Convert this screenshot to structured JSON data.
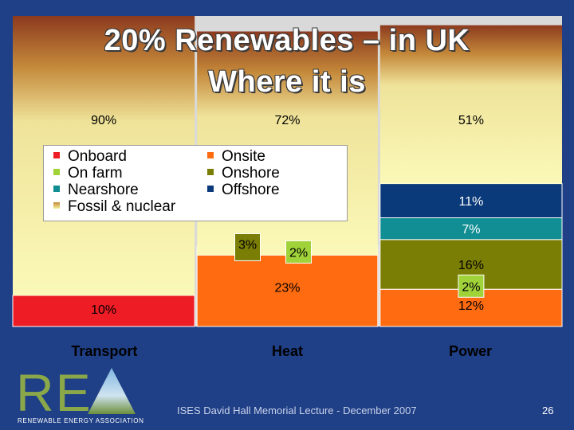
{
  "slide": {
    "title_line1": "20% Renewables – in UK",
    "title_line2": "Where it is",
    "footer": "ISES David Hall Memorial Lecture - December 2007",
    "page_number": "26",
    "logo": {
      "letters": "RE",
      "tagline": "RENEWABLE ENERGY ASSOCIATION"
    }
  },
  "colors": {
    "background": "#1f3f86",
    "Onboard": "#ee1c25",
    "On farm": "#a0d23a",
    "Nearshore": "#108e93",
    "Onsite": "#ff6b10",
    "Onshore": "#7b7e05",
    "Offshore": "#0b3a7a",
    "Fossil & nuclear": "#f3f09a"
  },
  "legend": {
    "items": [
      {
        "label": "Onboard",
        "color": "#ee1c25"
      },
      {
        "label": "On farm",
        "color": "#a0d23a"
      },
      {
        "label": "Nearshore",
        "color": "#108e93"
      },
      {
        "label": "Fossil & nuclear",
        "color": "#f3f09a"
      },
      {
        "label": "Onsite",
        "color": "#ff6b10"
      },
      {
        "label": "Onshore",
        "color": "#7b7e05"
      },
      {
        "label": "Offshore",
        "color": "#0b3a7a"
      }
    ]
  },
  "chart_data": {
    "type": "bar",
    "stacked": true,
    "categories": [
      "Transport",
      "Heat",
      "Power"
    ],
    "title": "20% Renewables – in UK Where it is",
    "xlabel": "",
    "ylabel": "",
    "ylim": [
      0,
      100
    ],
    "grid": false,
    "legend_position": "top-left",
    "series": [
      {
        "name": "Onboard",
        "values": [
          10,
          0,
          0
        ],
        "labels": [
          "10%",
          "",
          ""
        ]
      },
      {
        "name": "Onsite",
        "values": [
          0,
          23,
          12
        ],
        "labels": [
          "",
          "23%",
          "12%"
        ]
      },
      {
        "name": "On farm",
        "values": [
          0,
          2,
          2
        ],
        "labels": [
          "",
          "2%",
          "2%"
        ]
      },
      {
        "name": "Onshore",
        "values": [
          0,
          3,
          16
        ],
        "labels": [
          "",
          "3%",
          "16%"
        ]
      },
      {
        "name": "Nearshore",
        "values": [
          0,
          0,
          7
        ],
        "labels": [
          "",
          "",
          "7%"
        ]
      },
      {
        "name": "Offshore",
        "values": [
          0,
          0,
          11
        ],
        "labels": [
          "",
          "",
          "11%"
        ]
      },
      {
        "name": "Fossil & nuclear",
        "values": [
          90,
          72,
          51
        ],
        "labels": [
          "90%",
          "72%",
          "51%"
        ]
      }
    ]
  }
}
